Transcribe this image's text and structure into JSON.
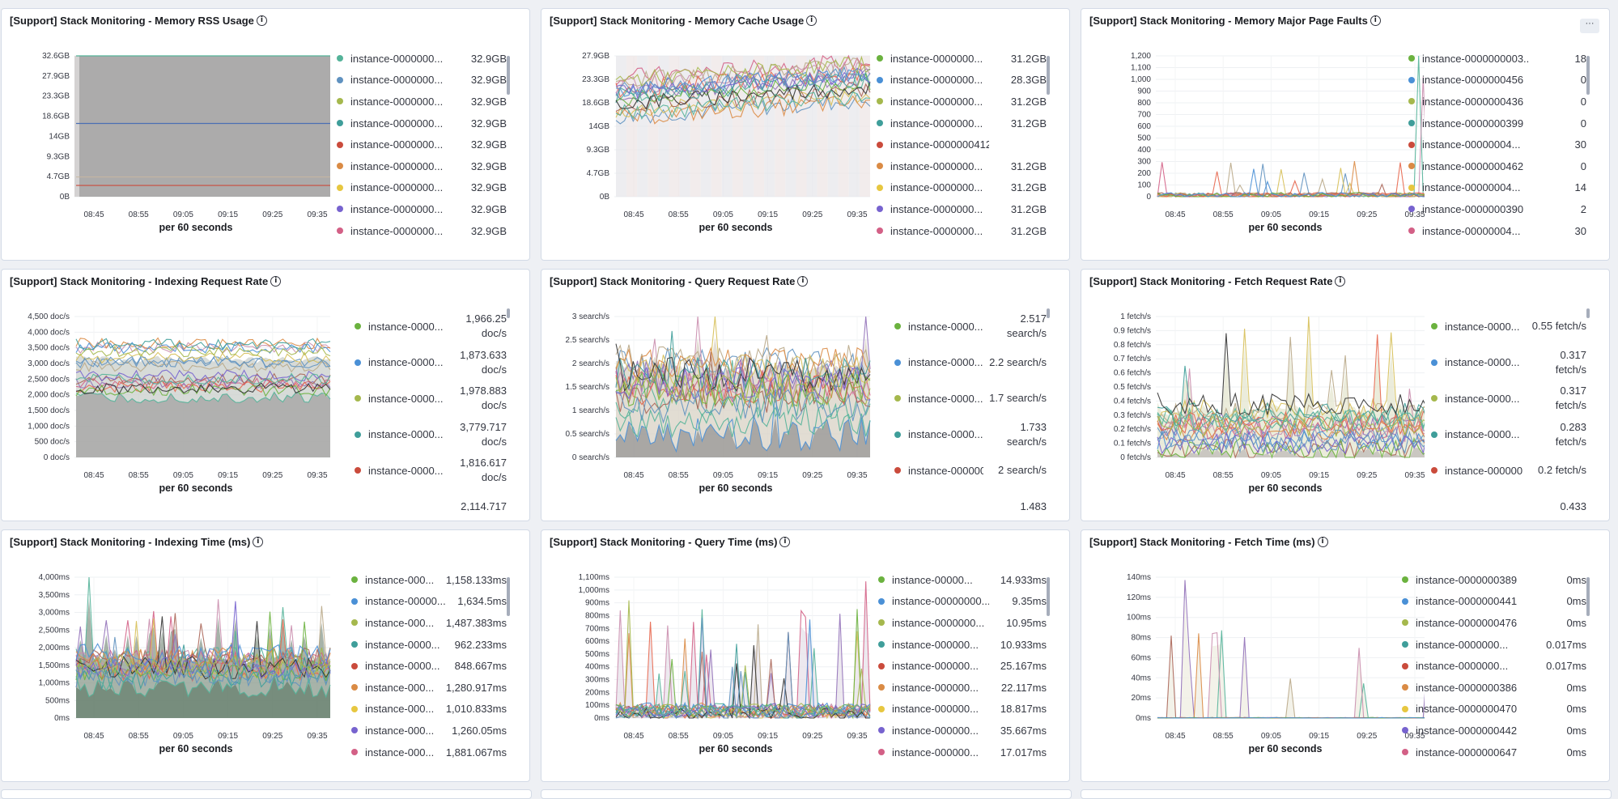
{
  "dashboard": {
    "more_icon_label": "···",
    "panels": [
      {
        "title": "[Support] Stack Monitoring - Memory RSS Usage",
        "xlabel": "per 60 seconds",
        "ylabels": [
          "32.6GB",
          "27.9GB",
          "23.3GB",
          "18.6GB",
          "14GB",
          "9.3GB",
          "4.7GB",
          "0B"
        ],
        "xticks": [
          "08:45",
          "08:55",
          "09:05",
          "09:15",
          "09:25",
          "09:35"
        ],
        "style": "rss",
        "legend_wrap": false,
        "name_width": 122,
        "legend": [
          {
            "name": "instance-0000000...",
            "value": "32.9GB",
            "color": "#54b399"
          },
          {
            "name": "instance-0000000...",
            "value": "32.9GB",
            "color": "#6092c0"
          },
          {
            "name": "instance-0000000...",
            "value": "32.9GB",
            "color": "#a5b84d"
          },
          {
            "name": "instance-0000000...",
            "value": "32.9GB",
            "color": "#3f9e9a"
          },
          {
            "name": "instance-0000000...",
            "value": "32.9GB",
            "color": "#ca4b3c"
          },
          {
            "name": "instance-0000000...",
            "value": "32.9GB",
            "color": "#da8b45"
          },
          {
            "name": "instance-0000000...",
            "value": "32.9GB",
            "color": "#e7c740"
          },
          {
            "name": "instance-0000000...",
            "value": "32.9GB",
            "color": "#7763cf"
          },
          {
            "name": "instance-0000000...",
            "value": "32.9GB",
            "color": "#d36086"
          }
        ]
      },
      {
        "title": "[Support] Stack Monitoring - Memory Cache Usage",
        "xlabel": "per 60 seconds",
        "ylabels": [
          "27.9GB",
          "23.3GB",
          "18.6GB",
          "14GB",
          "9.3GB",
          "4.7GB",
          "0B"
        ],
        "xticks": [
          "08:45",
          "08:55",
          "09:05",
          "09:15",
          "09:25",
          "09:35"
        ],
        "style": "cache",
        "legend_wrap": false,
        "name_width": 122,
        "legend": [
          {
            "name": "instance-0000000...",
            "value": "31.2GB",
            "color": "#6bb23f"
          },
          {
            "name": "instance-0000000...",
            "value": "28.3GB",
            "color": "#4a90d6"
          },
          {
            "name": "instance-0000000...",
            "value": "31.2GB",
            "color": "#a5b84d"
          },
          {
            "name": "instance-0000000...",
            "value": "31.2GB",
            "color": "#3f9e9a"
          },
          {
            "name": "instance-0000000412",
            "value": "",
            "color": "#ca4b3c"
          },
          {
            "name": "instance-0000000...",
            "value": "31.2GB",
            "color": "#da8b45"
          },
          {
            "name": "instance-0000000...",
            "value": "31.2GB",
            "color": "#e7c740"
          },
          {
            "name": "instance-0000000...",
            "value": "31.2GB",
            "color": "#7763cf"
          },
          {
            "name": "instance-0000000...",
            "value": "31.2GB",
            "color": "#d36086"
          }
        ]
      },
      {
        "title": "[Support] Stack Monitoring - Memory Major Page Faults",
        "xlabel": "per 60 seconds",
        "ylabels": [
          "1,200",
          "1,100",
          "1,000",
          "900",
          "800",
          "700",
          "600",
          "500",
          "400",
          "300",
          "200",
          "100",
          "0"
        ],
        "xticks": [
          "08:45",
          "08:55",
          "09:05",
          "09:15",
          "09:25",
          "09:35"
        ],
        "style": "faults",
        "legend_wrap": false,
        "name_width": 132,
        "legend": [
          {
            "name": "instance-0000000003...",
            "value": "18",
            "color": "#6bb23f"
          },
          {
            "name": "instance-0000000456",
            "value": "0",
            "color": "#4a90d6"
          },
          {
            "name": "instance-0000000436",
            "value": "0",
            "color": "#a5b84d"
          },
          {
            "name": "instance-0000000399",
            "value": "0",
            "color": "#3f9e9a"
          },
          {
            "name": "instance-00000004...",
            "value": "30",
            "color": "#ca4b3c"
          },
          {
            "name": "instance-0000000462",
            "value": "0",
            "color": "#da8b45"
          },
          {
            "name": "instance-00000004...",
            "value": "14",
            "color": "#e7c740"
          },
          {
            "name": "instance-0000000390",
            "value": "2",
            "color": "#7763cf"
          },
          {
            "name": "instance-00000004...",
            "value": "30",
            "color": "#d36086"
          }
        ]
      },
      {
        "title": "[Support] Stack Monitoring - Indexing Request Rate",
        "xlabel": "per 60 seconds",
        "ylabels": [
          "4,500 doc/s",
          "4,000 doc/s",
          "3,500 doc/s",
          "3,000 doc/s",
          "2,500 doc/s",
          "2,000 doc/s",
          "1,500 doc/s",
          "1,000 doc/s",
          "500 doc/s",
          "0 doc/s"
        ],
        "xticks": [
          "08:45",
          "08:55",
          "09:05",
          "09:15",
          "09:25",
          "09:35"
        ],
        "style": "idxrate",
        "legend_wrap": true,
        "name_width": 100,
        "legend": [
          {
            "name": "instance-0000...",
            "value": "1,966.25 doc/s",
            "color": "#6bb23f"
          },
          {
            "name": "instance-0000...",
            "value": "1,873.633 doc/s",
            "color": "#4a90d6"
          },
          {
            "name": "instance-0000...",
            "value": "1,978.883 doc/s",
            "color": "#a5b84d"
          },
          {
            "name": "instance-0000...",
            "value": "3,779.717 doc/s",
            "color": "#3f9e9a"
          },
          {
            "name": "instance-0000...",
            "value": "1,816.617 doc/s",
            "color": "#ca4b3c"
          },
          {
            "name": "",
            "value": "2,114.717",
            "color": "#ffffff"
          }
        ]
      },
      {
        "title": "[Support] Stack Monitoring - Query Request Rate",
        "xlabel": "per 60 seconds",
        "ylabels": [
          "3 search/s",
          "2.5 search/s",
          "2 search/s",
          "1.5 search/s",
          "1 search/s",
          "0.5 search/s",
          "0 search/s"
        ],
        "xticks": [
          "08:45",
          "08:55",
          "09:05",
          "09:15",
          "09:25",
          "09:35"
        ],
        "style": "qrate",
        "legend_wrap": true,
        "name_width": 100,
        "legend": [
          {
            "name": "instance-0000...",
            "value": "2.517 search/s",
            "color": "#6bb23f"
          },
          {
            "name": "instance-0000...",
            "value": "2.2 search/s",
            "color": "#4a90d6"
          },
          {
            "name": "instance-0000...",
            "value": "1.7 search/s",
            "color": "#a5b84d"
          },
          {
            "name": "instance-0000...",
            "value": "1.733 search/s",
            "color": "#3f9e9a"
          },
          {
            "name": "instance-000000...",
            "value": "2 search/s",
            "color": "#ca4b3c"
          },
          {
            "name": "",
            "value": "1.483",
            "color": "#ffffff"
          }
        ]
      },
      {
        "title": "[Support] Stack Monitoring - Fetch Request Rate",
        "xlabel": "per 60 seconds",
        "ylabels": [
          "1 fetch/s",
          "0.9 fetch/s",
          "0.8 fetch/s",
          "0.7 fetch/s",
          "0.6 fetch/s",
          "0.5 fetch/s",
          "0.4 fetch/s",
          "0.3 fetch/s",
          "0.2 fetch/s",
          "0.1 fetch/s",
          "0 fetch/s"
        ],
        "xticks": [
          "08:45",
          "08:55",
          "09:05",
          "09:15",
          "09:25",
          "09:35"
        ],
        "style": "frate",
        "legend_wrap": true,
        "name_width": 104,
        "legend": [
          {
            "name": "instance-0000...",
            "value": "0.55 fetch/s",
            "color": "#6bb23f"
          },
          {
            "name": "instance-0000...",
            "value": "0.317 fetch/s",
            "color": "#4a90d6"
          },
          {
            "name": "instance-0000...",
            "value": "0.317 fetch/s",
            "color": "#a5b84d"
          },
          {
            "name": "instance-0000...",
            "value": "0.283 fetch/s",
            "color": "#3f9e9a"
          },
          {
            "name": "instance-000000...",
            "value": "0.2 fetch/s",
            "color": "#ca4b3c"
          },
          {
            "name": "",
            "value": "0.433",
            "color": "#ffffff"
          }
        ]
      },
      {
        "title": "[Support] Stack Monitoring - Indexing Time (ms)",
        "xlabel": "per 60 seconds",
        "ylabels": [
          "4,000ms",
          "3,500ms",
          "3,000ms",
          "2,500ms",
          "2,000ms",
          "1,500ms",
          "1,000ms",
          "500ms",
          "0ms"
        ],
        "xticks": [
          "08:45",
          "08:55",
          "09:05",
          "09:15",
          "09:25",
          "09:35"
        ],
        "style": "idxtime",
        "legend_wrap": false,
        "name_width": 104,
        "legend": [
          {
            "name": "instance-000...",
            "value": "1,158.133ms",
            "color": "#6bb23f"
          },
          {
            "name": "instance-00000...",
            "value": "1,634.5ms",
            "color": "#4a90d6"
          },
          {
            "name": "instance-000...",
            "value": "1,487.383ms",
            "color": "#a5b84d"
          },
          {
            "name": "instance-0000...",
            "value": "962.233ms",
            "color": "#3f9e9a"
          },
          {
            "name": "instance-0000...",
            "value": "848.667ms",
            "color": "#ca4b3c"
          },
          {
            "name": "instance-000...",
            "value": "1,280.917ms",
            "color": "#da8b45"
          },
          {
            "name": "instance-000...",
            "value": "1,010.833ms",
            "color": "#e7c740"
          },
          {
            "name": "instance-000...",
            "value": "1,260.05ms",
            "color": "#7763cf"
          },
          {
            "name": "instance-000...",
            "value": "1,881.067ms",
            "color": "#d36086"
          }
        ]
      },
      {
        "title": "[Support] Stack Monitoring - Query Time (ms)",
        "xlabel": "per 60 seconds",
        "ylabels": [
          "1,100ms",
          "1,000ms",
          "900ms",
          "800ms",
          "700ms",
          "600ms",
          "500ms",
          "400ms",
          "300ms",
          "200ms",
          "100ms",
          "0ms"
        ],
        "xticks": [
          "08:45",
          "08:55",
          "09:05",
          "09:15",
          "09:25",
          "09:35"
        ],
        "style": "qtime",
        "legend_wrap": false,
        "name_width": 120,
        "legend": [
          {
            "name": "instance-00000...",
            "value": "14.933ms",
            "color": "#6bb23f"
          },
          {
            "name": "instance-00000000...",
            "value": "9.35ms",
            "color": "#4a90d6"
          },
          {
            "name": "instance-0000000...",
            "value": "10.95ms",
            "color": "#a5b84d"
          },
          {
            "name": "instance-000000...",
            "value": "10.933ms",
            "color": "#3f9e9a"
          },
          {
            "name": "instance-000000...",
            "value": "25.167ms",
            "color": "#ca4b3c"
          },
          {
            "name": "instance-000000...",
            "value": "22.117ms",
            "color": "#da8b45"
          },
          {
            "name": "instance-000000...",
            "value": "18.817ms",
            "color": "#e7c740"
          },
          {
            "name": "instance-000000...",
            "value": "35.667ms",
            "color": "#7763cf"
          },
          {
            "name": "instance-000000...",
            "value": "17.017ms",
            "color": "#d36086"
          }
        ]
      },
      {
        "title": "[Support] Stack Monitoring - Fetch Time (ms)",
        "xlabel": "per 60 seconds",
        "ylabels": [
          "140ms",
          "120ms",
          "100ms",
          "80ms",
          "60ms",
          "40ms",
          "20ms",
          "0ms"
        ],
        "xticks": [
          "08:45",
          "08:55",
          "09:05",
          "09:15",
          "09:25",
          "09:35"
        ],
        "style": "ftime",
        "legend_wrap": false,
        "name_width": 140,
        "legend": [
          {
            "name": "instance-0000000389",
            "value": "0ms",
            "color": "#6bb23f"
          },
          {
            "name": "instance-0000000441",
            "value": "0ms",
            "color": "#4a90d6"
          },
          {
            "name": "instance-0000000476",
            "value": "0ms",
            "color": "#a5b84d"
          },
          {
            "name": "instance-0000000...",
            "value": "0.017ms",
            "color": "#3f9e9a"
          },
          {
            "name": "instance-0000000...",
            "value": "0.017ms",
            "color": "#ca4b3c"
          },
          {
            "name": "instance-0000000386",
            "value": "0ms",
            "color": "#da8b45"
          },
          {
            "name": "instance-0000000470",
            "value": "0ms",
            "color": "#e7c740"
          },
          {
            "name": "instance-0000000442",
            "value": "0ms",
            "color": "#7763cf"
          },
          {
            "name": "instance-0000000647",
            "value": "0ms",
            "color": "#d36086"
          }
        ]
      }
    ]
  }
}
